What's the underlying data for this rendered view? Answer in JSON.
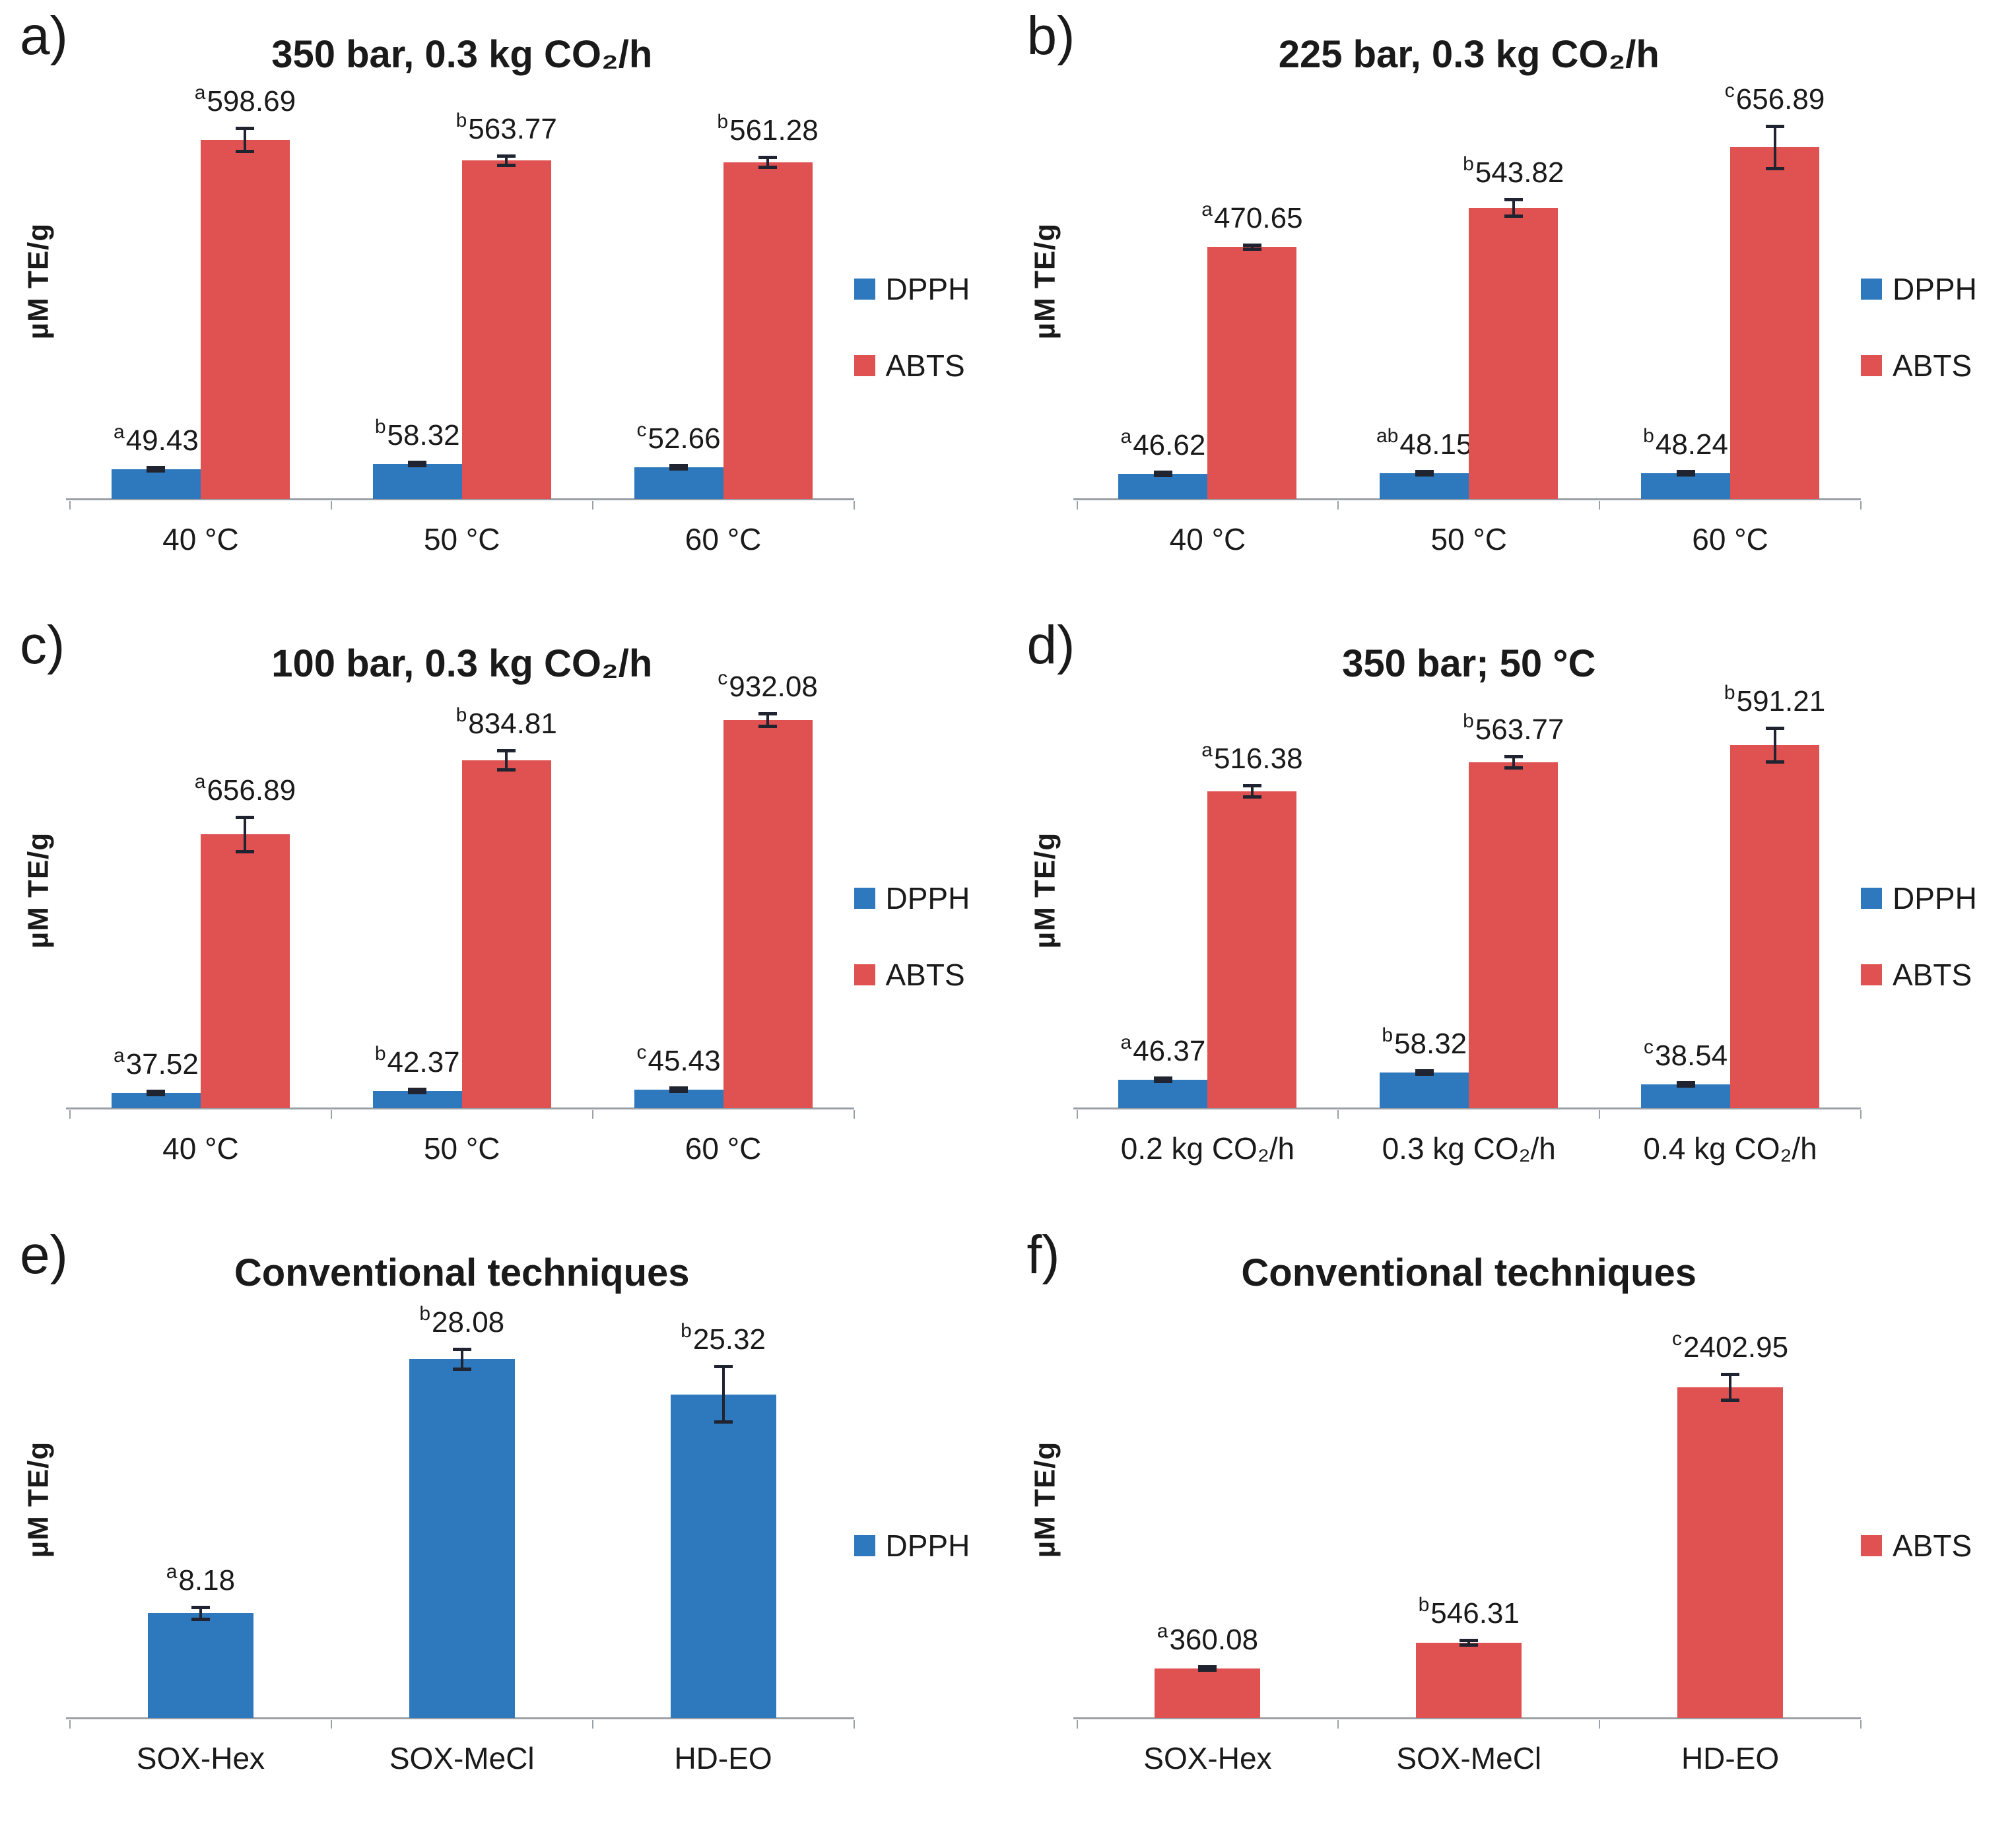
{
  "figure": {
    "ylabel": "µM TE/g",
    "colors": {
      "dpph_blue": "#2E79BD",
      "abts_red": "#E05151",
      "error_bar": "#1F2430",
      "axis_gray": "#9aa0a6",
      "text": "#1a1a1a"
    }
  },
  "chart_data": [
    {
      "type": "bar",
      "letter": "a)",
      "title": "350 bar, 0.3 kg CO₂/h",
      "ylabel": "µM TE/g",
      "categories": [
        "40 °C",
        "50 °C",
        "60 °C"
      ],
      "ylim": [
        0,
        660
      ],
      "grid": false,
      "legend_position": "right",
      "series": [
        {
          "name": "DPPH",
          "color": "#2E79BD",
          "values": [
            49.43,
            58.32,
            52.66
          ],
          "sig": [
            "a",
            "b",
            "c"
          ],
          "err": [
            2,
            1.5,
            3
          ]
        },
        {
          "name": "ABTS",
          "color": "#E05151",
          "values": [
            598.69,
            563.77,
            561.28
          ],
          "sig": [
            "a",
            "b",
            "b"
          ],
          "err": [
            20,
            8,
            9
          ]
        }
      ]
    },
    {
      "type": "bar",
      "letter": "b)",
      "title": "225 bar, 0.3 kg CO₂/h",
      "ylabel": "µM TE/g",
      "categories": [
        "40 °C",
        "50 °C",
        "60 °C"
      ],
      "ylim": [
        0,
        740
      ],
      "grid": false,
      "legend_position": "right",
      "series": [
        {
          "name": "DPPH",
          "color": "#2E79BD",
          "values": [
            46.62,
            48.15,
            48.24
          ],
          "sig": [
            "a",
            "ab",
            "b"
          ],
          "err": [
            2,
            3,
            3
          ]
        },
        {
          "name": "ABTS",
          "color": "#E05151",
          "values": [
            470.65,
            543.82,
            656.89
          ],
          "sig": [
            "a",
            "b",
            "c"
          ],
          "err": [
            4,
            16,
            40
          ]
        }
      ]
    },
    {
      "type": "bar",
      "letter": "c)",
      "title": "100 bar, 0.3 kg CO₂/h",
      "ylabel": "µM TE/g",
      "categories": [
        "40 °C",
        "50 °C",
        "60 °C"
      ],
      "ylim": [
        0,
        950
      ],
      "grid": false,
      "legend_position": "right",
      "series": [
        {
          "name": "DPPH",
          "color": "#2E79BD",
          "values": [
            37.52,
            42.37,
            45.43
          ],
          "sig": [
            "a",
            "b",
            "c"
          ],
          "err": [
            2,
            4,
            4
          ]
        },
        {
          "name": "ABTS",
          "color": "#E05151",
          "values": [
            656.89,
            834.81,
            932.08
          ],
          "sig": [
            "a",
            "b",
            "c"
          ],
          "err": [
            42,
            24,
            16
          ]
        }
      ]
    },
    {
      "type": "bar",
      "letter": "d)",
      "title": "350 bar; 50 °C",
      "ylabel": "µM TE/g",
      "categories": [
        "0.2 kg CO₂/h",
        "0.3 kg CO₂/h",
        "0.4 kg CO₂/h"
      ],
      "ylim": [
        0,
        645
      ],
      "grid": false,
      "legend_position": "right",
      "series": [
        {
          "name": "DPPH",
          "color": "#2E79BD",
          "values": [
            46.37,
            58.32,
            38.54
          ],
          "sig": [
            "a",
            "b",
            "c"
          ],
          "err": [
            2,
            3,
            3
          ]
        },
        {
          "name": "ABTS",
          "color": "#E05151",
          "values": [
            516.38,
            563.77,
            591.21
          ],
          "sig": [
            "a",
            "b",
            "b"
          ],
          "err": [
            10,
            10,
            28
          ]
        }
      ]
    },
    {
      "type": "bar",
      "letter": "e)",
      "title": "Conventional techniques",
      "ylabel": "µM TE/g",
      "categories": [
        "SOX-Hex",
        "SOX-MeCl",
        "HD-EO"
      ],
      "ylim": [
        0,
        31
      ],
      "grid": false,
      "legend_position": "right",
      "series": [
        {
          "name": "DPPH",
          "color": "#2E79BD",
          "values": [
            8.18,
            28.08,
            25.32
          ],
          "sig": [
            "a",
            "b",
            "b"
          ],
          "err": [
            0.5,
            0.8,
            2.2
          ]
        }
      ]
    },
    {
      "type": "bar",
      "letter": "f)",
      "title": "Conventional techniques",
      "ylabel": "µM TE/g",
      "categories": [
        "SOX-Hex",
        "SOX-MeCl",
        "HD-EO"
      ],
      "ylim": [
        0,
        2880
      ],
      "grid": false,
      "legend_position": "right",
      "series": [
        {
          "name": "ABTS",
          "color": "#E05151",
          "values": [
            360.08,
            546.31,
            2402.95
          ],
          "sig": [
            "a",
            "b",
            "c"
          ],
          "err": [
            8,
            18,
            95
          ]
        }
      ]
    }
  ]
}
